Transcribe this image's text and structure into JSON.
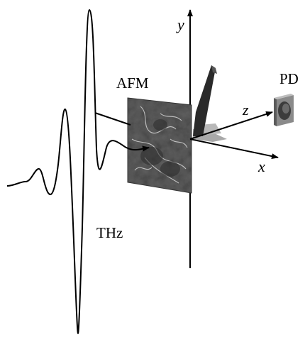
{
  "labels": {
    "afm": "AFM",
    "pd": "PD",
    "thz": "THz",
    "axis_x": "x",
    "axis_y": "y",
    "axis_z": "z"
  },
  "colors": {
    "ink": "#000000",
    "sample_base": "#5e5e5e",
    "cantilever": "#2a2a2a",
    "tip_shadow": "#9a9a9a",
    "detector_face": "#d8d8d8",
    "detector_lens": "#3c3c3c"
  }
}
